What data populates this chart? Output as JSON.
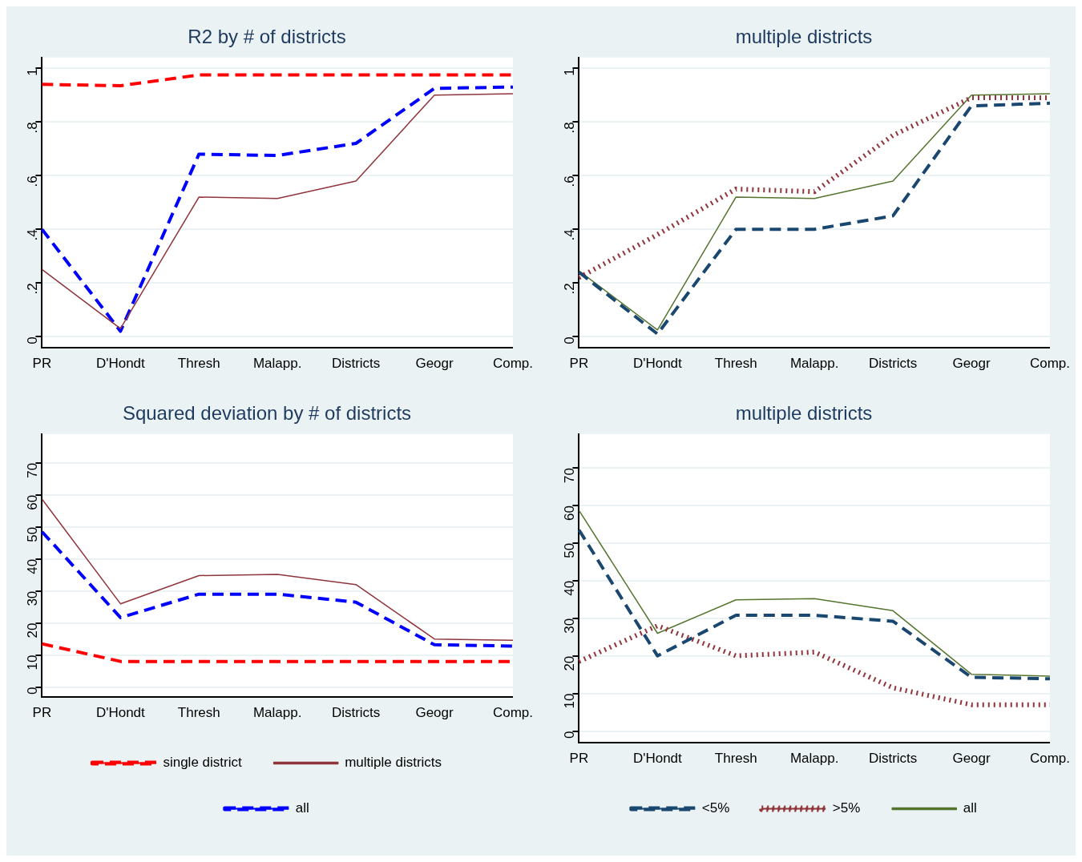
{
  "chart_data": [
    {
      "type": "line",
      "title": "R2 by # of districts",
      "categories": [
        "PR",
        "D'Hondt",
        "Thresh",
        "Malapp.",
        "Districts",
        "Geogr",
        "Comp."
      ],
      "ylim": [
        -0.04,
        1.04
      ],
      "yticks": [
        0,
        {
          "value": 0.2,
          "label": ".2"
        },
        {
          "value": 0.4,
          "label": ".4"
        },
        {
          "value": 0.6,
          "label": ".6"
        },
        {
          "value": 0.8,
          "label": ".8"
        },
        1
      ],
      "grid": "y",
      "legend": false,
      "series": [
        {
          "color": "#ff0000",
          "line_style": "dashed",
          "values": [
            0.94,
            0.935,
            0.975,
            0.975,
            0.975,
            0.975,
            0.975
          ]
        },
        {
          "color": "#90353b",
          "line_style": "solid",
          "values": [
            0.25,
            0.03,
            0.52,
            0.515,
            0.58,
            0.9,
            0.905
          ]
        },
        {
          "color": "#0000ff",
          "line_style": "dashed",
          "values": [
            0.4,
            0.02,
            0.68,
            0.675,
            0.72,
            0.925,
            0.93
          ]
        }
      ]
    },
    {
      "type": "line",
      "title": "multiple districts",
      "categories": [
        "PR",
        "D'Hondt",
        "Thresh",
        "Malapp.",
        "Districts",
        "Geogr",
        "Comp."
      ],
      "ylim": [
        -0.04,
        1.04
      ],
      "yticks": [
        0,
        {
          "value": 0.2,
          "label": ".2"
        },
        {
          "value": 0.4,
          "label": ".4"
        },
        {
          "value": 0.6,
          "label": ".6"
        },
        {
          "value": 0.8,
          "label": ".8"
        },
        1
      ],
      "grid": "y",
      "legend": false,
      "series": [
        {
          "color": "#1a476f",
          "line_style": "dashed",
          "values": [
            0.24,
            0.01,
            0.4,
            0.4,
            0.45,
            0.86,
            0.87
          ]
        },
        {
          "color": "#90353b",
          "line_style": "dotted",
          "values": [
            0.22,
            0.38,
            0.55,
            0.54,
            0.75,
            0.89,
            0.89
          ]
        },
        {
          "color": "#55752f",
          "line_style": "solid",
          "values": [
            0.245,
            0.025,
            0.52,
            0.515,
            0.58,
            0.9,
            0.905
          ]
        }
      ]
    },
    {
      "type": "line",
      "title": "Squared deviation by # of districts",
      "categories": [
        "PR",
        "D'Hondt",
        "Thresh",
        "Malapp.",
        "Districts",
        "Geogr",
        "Comp."
      ],
      "ylim": [
        -3,
        79
      ],
      "yticks": [
        0,
        10,
        20,
        30,
        40,
        50,
        60,
        70
      ],
      "grid": "y",
      "legend": "bottom",
      "series": [
        {
          "name": "single district",
          "color": "#ff0000",
          "line_style": "dashed",
          "values": [
            13.5,
            8,
            8,
            8,
            8,
            8,
            8
          ]
        },
        {
          "name": "multiple districts",
          "color": "#90353b",
          "line_style": "solid",
          "values": [
            58.7,
            26,
            34.8,
            35.2,
            32,
            15,
            14.6
          ]
        },
        {
          "name": "all",
          "color": "#0000ff",
          "line_style": "dashed",
          "values": [
            48.5,
            21.7,
            29,
            29,
            26.5,
            13.2,
            12.8
          ]
        }
      ]
    },
    {
      "type": "line",
      "title": "multiple districts",
      "categories": [
        "PR",
        "D'Hondt",
        "Thresh",
        "Malapp.",
        "Districts",
        "Geogr",
        "Comp."
      ],
      "ylim": [
        -3,
        79
      ],
      "yticks": [
        0,
        10,
        20,
        30,
        40,
        50,
        60,
        70
      ],
      "grid": "y",
      "legend": "bottom",
      "series": [
        {
          "name": "<5%",
          "color": "#1a476f",
          "line_style": "dashed",
          "values": [
            53.5,
            20,
            30.8,
            30.8,
            29.2,
            14.3,
            13.9
          ]
        },
        {
          "name": ">5%",
          "color": "#90353b",
          "line_style": "dotted",
          "values": [
            18.5,
            28,
            20,
            21,
            11.5,
            7,
            7
          ]
        },
        {
          "name": "all",
          "color": "#55752f",
          "line_style": "solid",
          "values": [
            58.7,
            26,
            34.9,
            35.2,
            32,
            15.1,
            14.6
          ]
        }
      ]
    }
  ]
}
